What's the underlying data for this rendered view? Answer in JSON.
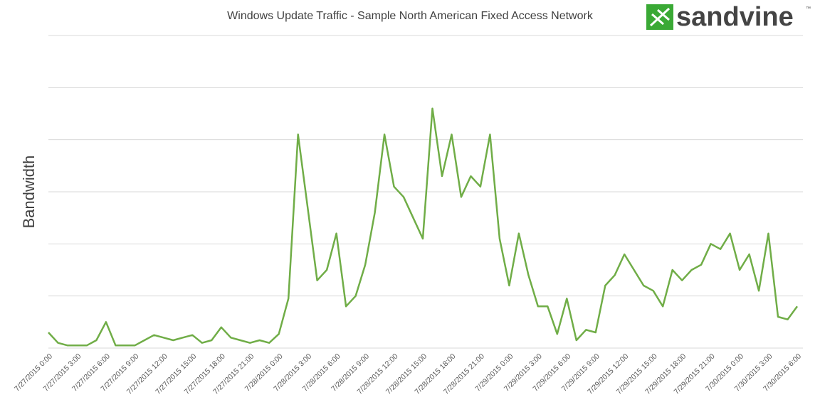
{
  "chart_data": {
    "type": "line",
    "title": "Windows Update Traffic - Sample North American Fixed Access Network",
    "y_label": "Bandwidth",
    "logo": "sandvine",
    "logo_mark": "™",
    "color": "#70ad47",
    "ylim": [
      0,
      6
    ],
    "grid_lines": [
      0,
      1,
      2,
      3,
      4,
      5,
      6
    ],
    "categories": [
      "7/27/2015 0:00",
      null,
      null,
      "7/27/2015 3:00",
      null,
      null,
      "7/27/2015 6:00",
      null,
      null,
      "7/27/2015 9:00",
      null,
      null,
      "7/27/2015 12:00",
      null,
      null,
      "7/27/2015 15:00",
      null,
      null,
      "7/27/2015 18:00",
      null,
      null,
      "7/27/2015 21:00",
      null,
      null,
      "7/28/2015 0:00",
      null,
      null,
      "7/28/2015 3:00",
      null,
      null,
      "7/28/2015 6:00",
      null,
      null,
      "7/28/2015 9:00",
      null,
      null,
      "7/28/2015 12:00",
      null,
      null,
      "7/28/2015 15:00",
      null,
      null,
      "7/28/2015 18:00",
      null,
      null,
      "7/28/2015 21:00",
      null,
      null,
      "7/29/2015 0:00",
      null,
      null,
      "7/29/2015 3:00",
      null,
      null,
      "7/29/2015 6:00",
      null,
      null,
      "7/29/2015 9:00",
      null,
      null,
      "7/29/2015 12:00",
      null,
      null,
      "7/29/2015 15:00",
      null,
      null,
      "7/29/2015 18:00",
      null,
      null,
      "7/29/2015 21:00",
      null,
      null,
      "7/30/2015 0:00",
      null,
      null,
      "7/30/2015 3:00",
      null,
      null,
      "7/30/2015 6:00"
    ],
    "values": [
      0.3,
      0.1,
      0.05,
      0.05,
      0.05,
      0.15,
      0.5,
      0.05,
      0.05,
      0.05,
      0.15,
      0.25,
      0.2,
      0.15,
      0.2,
      0.25,
      0.1,
      0.15,
      0.4,
      0.2,
      0.15,
      0.1,
      0.15,
      0.1,
      0.27,
      0.95,
      4.1,
      2.7,
      1.3,
      1.5,
      2.2,
      0.8,
      1.0,
      1.6,
      2.6,
      4.1,
      3.1,
      2.9,
      2.5,
      2.1,
      4.6,
      3.3,
      4.1,
      2.9,
      3.3,
      3.1,
      4.1,
      2.1,
      1.2,
      2.2,
      1.4,
      0.8,
      0.8,
      0.27,
      0.95,
      0.15,
      0.35,
      0.3,
      1.2,
      1.4,
      1.8,
      1.5,
      1.2,
      1.1,
      0.8,
      1.5,
      1.3,
      1.5,
      1.6,
      2.0,
      1.9,
      2.2,
      1.5,
      1.8,
      1.1,
      2.2,
      0.6,
      0.55,
      0.8
    ]
  }
}
